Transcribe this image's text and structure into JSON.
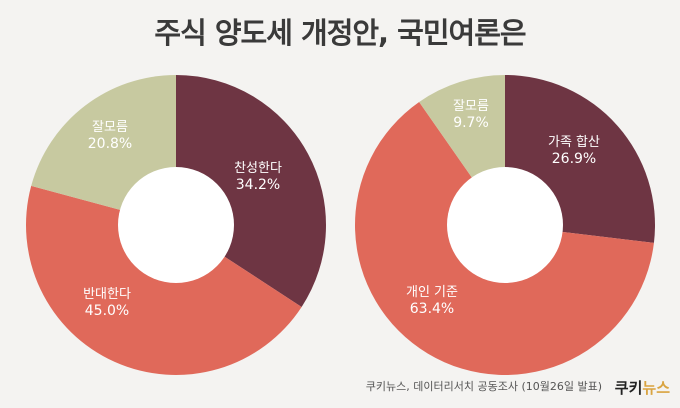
{
  "title": "주식 양도세 개정안, 국민여론은",
  "source": "쿠키뉴스, 데이터리서치 공동조사 (10월26일 발표)",
  "brand": {
    "part1": "쿠키",
    "part2": "뉴스"
  },
  "chart_data": [
    {
      "type": "pie",
      "donut": true,
      "slices": [
        {
          "label": "찬성한다",
          "value_text": "34.2%",
          "value": 34.2,
          "color": "#6e3543"
        },
        {
          "label": "반대한다",
          "value_text": "45.0%",
          "value": 45.0,
          "color": "#e0695a"
        },
        {
          "label": "잘모름",
          "value_text": "20.8%",
          "value": 20.8,
          "color": "#c7c9a0"
        }
      ]
    },
    {
      "type": "pie",
      "donut": true,
      "slices": [
        {
          "label": "가족 합산",
          "value_text": "26.9%",
          "value": 26.9,
          "color": "#6e3543"
        },
        {
          "label": "개인 기준",
          "value_text": "63.4%",
          "value": 63.4,
          "color": "#e0695a"
        },
        {
          "label": "잘모름",
          "value_text": "9.7%",
          "value": 9.7,
          "color": "#c7c9a0"
        }
      ]
    }
  ]
}
